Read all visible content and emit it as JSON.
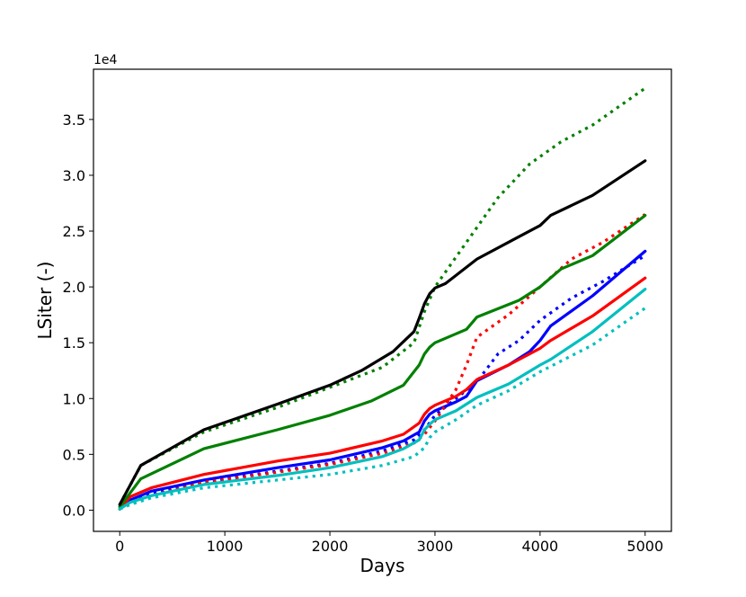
{
  "chart_data": {
    "type": "line",
    "xlabel": "Days",
    "ylabel": "LSiter  (-)",
    "y_offset_label": "1e4",
    "xlim": [
      -250,
      5250
    ],
    "ylim": [
      -0.19,
      3.95
    ],
    "y_multiplier": 10000,
    "x_ticks": [
      0,
      1000,
      2000,
      3000,
      4000,
      5000
    ],
    "x_tick_labels": [
      "0",
      "1000",
      "2000",
      "3000",
      "4000",
      "5000"
    ],
    "y_ticks": [
      0.0,
      0.5,
      1.0,
      1.5,
      2.0,
      2.5,
      3.0,
      3.5
    ],
    "y_tick_labels": [
      "0.0",
      "0.5",
      "1.0",
      "1.5",
      "2.0",
      "2.5",
      "3.0",
      "3.5"
    ],
    "grid": false,
    "series": [
      {
        "color": "#0000ff",
        "style": "solid",
        "points": [
          [
            0,
            0.01
          ],
          [
            100,
            0.09
          ],
          [
            300,
            0.17
          ],
          [
            800,
            0.27
          ],
          [
            1500,
            0.38
          ],
          [
            2000,
            0.45
          ],
          [
            2500,
            0.56
          ],
          [
            2700,
            0.62
          ],
          [
            2850,
            0.7
          ],
          [
            2900,
            0.8
          ],
          [
            2950,
            0.86
          ],
          [
            3000,
            0.89
          ],
          [
            3200,
            0.97
          ],
          [
            3300,
            1.02
          ],
          [
            3400,
            1.16
          ],
          [
            3700,
            1.3
          ],
          [
            3900,
            1.42
          ],
          [
            4000,
            1.52
          ],
          [
            4100,
            1.65
          ],
          [
            4500,
            1.92
          ],
          [
            5000,
            2.32
          ]
        ]
      },
      {
        "color": "#0000ff",
        "style": "dotted",
        "points": [
          [
            0,
            0.01
          ],
          [
            100,
            0.07
          ],
          [
            300,
            0.15
          ],
          [
            800,
            0.25
          ],
          [
            1500,
            0.35
          ],
          [
            2000,
            0.42
          ],
          [
            2500,
            0.53
          ],
          [
            2800,
            0.63
          ],
          [
            2900,
            0.72
          ],
          [
            3000,
            0.85
          ],
          [
            3200,
            1.0
          ],
          [
            3400,
            1.15
          ],
          [
            3600,
            1.4
          ],
          [
            3800,
            1.52
          ],
          [
            4000,
            1.7
          ],
          [
            4300,
            1.9
          ],
          [
            4600,
            2.05
          ],
          [
            5000,
            2.28
          ]
        ]
      },
      {
        "color": "#ff0000",
        "style": "solid",
        "points": [
          [
            0,
            0.01
          ],
          [
            100,
            0.12
          ],
          [
            300,
            0.2
          ],
          [
            800,
            0.32
          ],
          [
            1500,
            0.44
          ],
          [
            2000,
            0.51
          ],
          [
            2500,
            0.62
          ],
          [
            2700,
            0.68
          ],
          [
            2850,
            0.78
          ],
          [
            2900,
            0.86
          ],
          [
            2950,
            0.91
          ],
          [
            3000,
            0.94
          ],
          [
            3200,
            1.02
          ],
          [
            3300,
            1.08
          ],
          [
            3400,
            1.17
          ],
          [
            3700,
            1.3
          ],
          [
            4000,
            1.45
          ],
          [
            4100,
            1.52
          ],
          [
            4500,
            1.74
          ],
          [
            5000,
            2.08
          ]
        ]
      },
      {
        "color": "#ff0000",
        "style": "dotted",
        "points": [
          [
            0,
            0.01
          ],
          [
            100,
            0.06
          ],
          [
            300,
            0.13
          ],
          [
            800,
            0.25
          ],
          [
            1500,
            0.34
          ],
          [
            2000,
            0.41
          ],
          [
            2500,
            0.51
          ],
          [
            2800,
            0.6
          ],
          [
            2900,
            0.68
          ],
          [
            3000,
            0.8
          ],
          [
            3200,
            1.08
          ],
          [
            3300,
            1.3
          ],
          [
            3400,
            1.55
          ],
          [
            3700,
            1.75
          ],
          [
            4000,
            2.0
          ],
          [
            4300,
            2.25
          ],
          [
            4600,
            2.4
          ],
          [
            5000,
            2.65
          ]
        ]
      },
      {
        "color": "#008000",
        "style": "solid",
        "points": [
          [
            0,
            0.03
          ],
          [
            200,
            0.28
          ],
          [
            800,
            0.55
          ],
          [
            1500,
            0.72
          ],
          [
            2000,
            0.85
          ],
          [
            2400,
            0.98
          ],
          [
            2700,
            1.12
          ],
          [
            2850,
            1.3
          ],
          [
            2900,
            1.4
          ],
          [
            2950,
            1.46
          ],
          [
            3000,
            1.5
          ],
          [
            3300,
            1.62
          ],
          [
            3400,
            1.73
          ],
          [
            3800,
            1.88
          ],
          [
            4000,
            2.0
          ],
          [
            4200,
            2.16
          ],
          [
            4500,
            2.28
          ],
          [
            5000,
            2.64
          ]
        ]
      },
      {
        "color": "#008000",
        "style": "dotted",
        "points": [
          [
            0,
            0.05
          ],
          [
            200,
            0.4
          ],
          [
            800,
            0.7
          ],
          [
            1500,
            0.92
          ],
          [
            2000,
            1.1
          ],
          [
            2500,
            1.28
          ],
          [
            2800,
            1.5
          ],
          [
            2900,
            1.78
          ],
          [
            3000,
            2.0
          ],
          [
            3300,
            2.4
          ],
          [
            3600,
            2.8
          ],
          [
            3900,
            3.1
          ],
          [
            4200,
            3.3
          ],
          [
            4500,
            3.45
          ],
          [
            5000,
            3.78
          ]
        ]
      },
      {
        "color": "#000000",
        "style": "solid",
        "points": [
          [
            0,
            0.05
          ],
          [
            200,
            0.4
          ],
          [
            800,
            0.72
          ],
          [
            1500,
            0.95
          ],
          [
            2000,
            1.12
          ],
          [
            2300,
            1.25
          ],
          [
            2600,
            1.42
          ],
          [
            2800,
            1.6
          ],
          [
            2850,
            1.72
          ],
          [
            2900,
            1.85
          ],
          [
            2950,
            1.94
          ],
          [
            3000,
            1.99
          ],
          [
            3100,
            2.03
          ],
          [
            3400,
            2.25
          ],
          [
            3800,
            2.45
          ],
          [
            4000,
            2.55
          ],
          [
            4100,
            2.64
          ],
          [
            4500,
            2.82
          ],
          [
            5000,
            3.13
          ]
        ]
      },
      {
        "color": "#00bfbf",
        "style": "solid",
        "points": [
          [
            0,
            0.01
          ],
          [
            100,
            0.07
          ],
          [
            300,
            0.13
          ],
          [
            800,
            0.23
          ],
          [
            1500,
            0.31
          ],
          [
            2000,
            0.38
          ],
          [
            2500,
            0.48
          ],
          [
            2700,
            0.55
          ],
          [
            2850,
            0.63
          ],
          [
            2900,
            0.72
          ],
          [
            2950,
            0.77
          ],
          [
            3000,
            0.81
          ],
          [
            3200,
            0.89
          ],
          [
            3400,
            1.01
          ],
          [
            3700,
            1.13
          ],
          [
            4000,
            1.3
          ],
          [
            4100,
            1.35
          ],
          [
            4500,
            1.6
          ],
          [
            5000,
            1.98
          ]
        ]
      },
      {
        "color": "#00bfbf",
        "style": "dotted",
        "points": [
          [
            0,
            0.01
          ],
          [
            100,
            0.05
          ],
          [
            300,
            0.11
          ],
          [
            800,
            0.2
          ],
          [
            1500,
            0.27
          ],
          [
            2000,
            0.32
          ],
          [
            2500,
            0.4
          ],
          [
            2800,
            0.48
          ],
          [
            2900,
            0.56
          ],
          [
            2950,
            0.65
          ],
          [
            3000,
            0.7
          ],
          [
            3200,
            0.81
          ],
          [
            3400,
            0.94
          ],
          [
            3700,
            1.07
          ],
          [
            4000,
            1.24
          ],
          [
            4500,
            1.48
          ],
          [
            5000,
            1.81
          ]
        ]
      }
    ]
  }
}
